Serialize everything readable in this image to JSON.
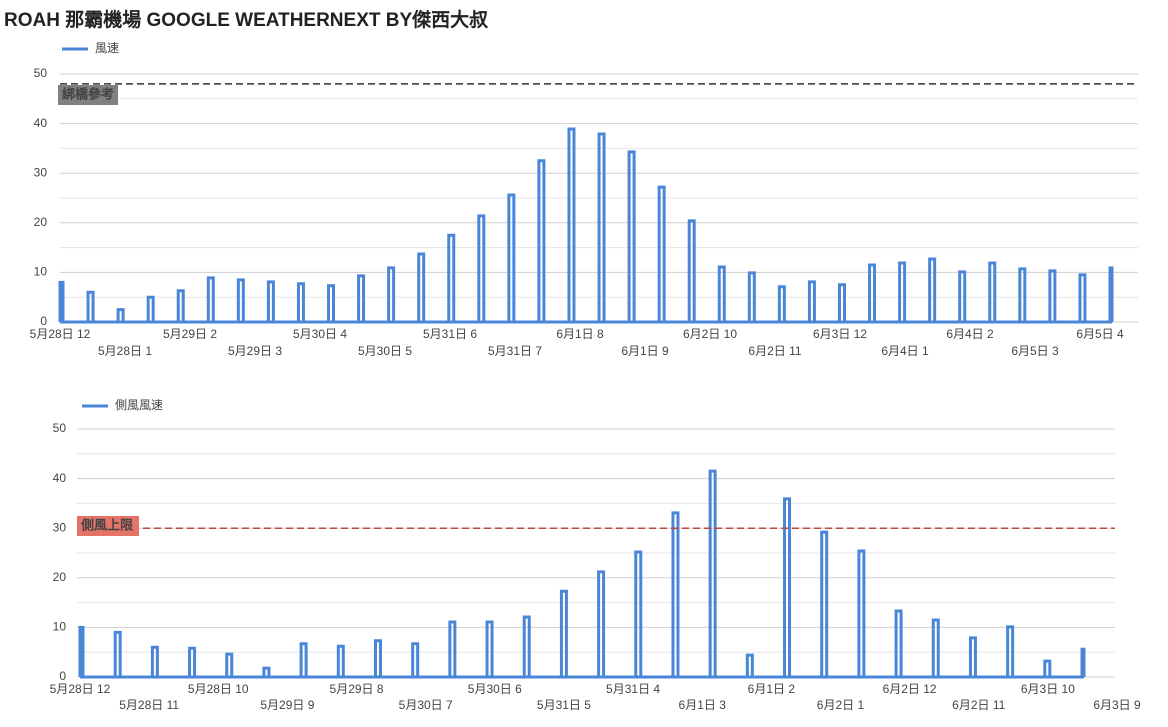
{
  "title": "ROAH 那霸機場 GOOGLE WEATHERNEXT BY傑西大叔",
  "chart_data": [
    {
      "type": "line",
      "grid": true,
      "series": [
        {
          "name": "風速",
          "color": "#4a86d8",
          "values": [
            8,
            6,
            2.5,
            5,
            6.3,
            8.9,
            8.5,
            8.1,
            7.7,
            7.3,
            9.3,
            10.9,
            13.7,
            17.5,
            21.4,
            25.6,
            32.5,
            38.9,
            37.9,
            34.3,
            27.2,
            20.4,
            11.1,
            9.9,
            7.1,
            8.1,
            7.5,
            11.5,
            11.9,
            12.7,
            10.1,
            11.9,
            10.7,
            10.3,
            9.5,
            10.9
          ]
        }
      ],
      "ylim": [
        0,
        50
      ],
      "yticks": [
        0,
        10,
        20,
        30,
        40,
        50
      ],
      "minor_yticks": [
        5,
        15,
        25,
        35,
        45
      ],
      "x_labels": [
        "5月28日 12",
        "5月28日 1",
        "5月29日 2",
        "5月29日 3",
        "5月30日 4",
        "5月30日 5",
        "5月31日 6",
        "5月31日 7",
        "6月1日 8",
        "6月1日 9",
        "6月2日 10",
        "6月2日 11",
        "6月3日 12",
        "6月4日 1",
        "6月4日 2",
        "6月5日 3",
        "6月5日 4"
      ],
      "reference": {
        "value": 48,
        "label": "綁橋參考",
        "color": "#333333",
        "label_bg": "#808080",
        "label_color": "#ffffff"
      }
    },
    {
      "type": "line",
      "grid": true,
      "series": [
        {
          "name": "側風風速",
          "color": "#4a86d8",
          "values": [
            10,
            9,
            6,
            5.8,
            4.6,
            1.8,
            6.7,
            6.2,
            7.3,
            6.7,
            11.1,
            11.1,
            12.1,
            17.3,
            21.2,
            25.2,
            33.1,
            41.5,
            4.4,
            35.9,
            29.2,
            25.4,
            13.3,
            11.5,
            7.9,
            10.1,
            3.2,
            5.6
          ]
        }
      ],
      "ylim": [
        0,
        50
      ],
      "yticks": [
        0,
        10,
        20,
        30,
        40,
        50
      ],
      "minor_yticks": [
        5,
        15,
        25,
        35,
        45
      ],
      "x_labels": [
        "5月28日 12",
        "5月28日 11",
        "5月28日 10",
        "5月29日 9",
        "5月29日 8",
        "5月30日 7",
        "5月30日 6",
        "5月31日 5",
        "5月31日 4",
        "6月1日 3",
        "6月1日 2",
        "6月2日 1",
        "6月2日 12",
        "6月2日 11",
        "6月3日 10",
        "6月3日 9"
      ],
      "reference": {
        "value": 30,
        "label": "側風上限",
        "color": "#c0453a",
        "label_bg": "#e57368",
        "label_color": "#222222"
      }
    }
  ]
}
